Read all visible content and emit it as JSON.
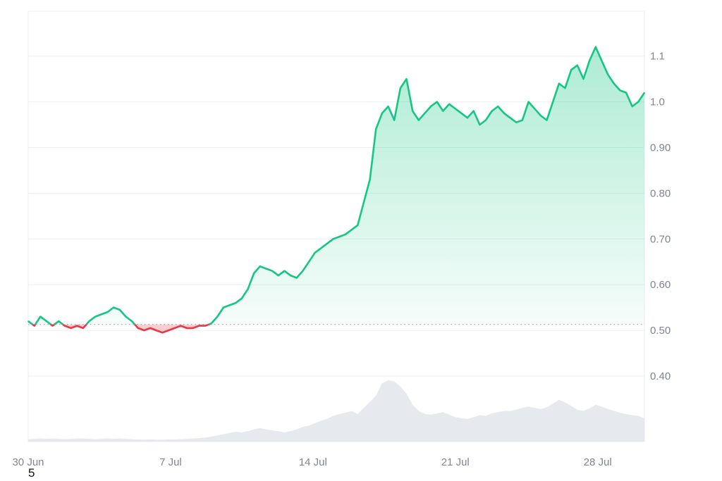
{
  "chart_data": {
    "type": "area",
    "title": "",
    "xlabel": "",
    "ylabel": "",
    "x_ticks": [
      "30 Jun",
      "7 Jul",
      "14 Jul",
      "21 Jul",
      "28 Jul"
    ],
    "x_tick_days": [
      0,
      7,
      14,
      21,
      28
    ],
    "x_range": [
      0,
      30.3
    ],
    "y_ticks": [
      "0.40",
      "0.50",
      "0.60",
      "0.70",
      "0.80",
      "0.90",
      "1.0",
      "1.1"
    ],
    "y_tick_values": [
      0.4,
      0.5,
      0.6,
      0.7,
      0.8,
      0.9,
      1.0,
      1.1
    ],
    "ylim": [
      0.3,
      1.2
    ],
    "baseline": 0.513,
    "grid": true,
    "y_axis_position": "right",
    "colors": {
      "up": "#16c784",
      "down": "#ea3943",
      "volume": "#e6e9ee",
      "grid": "#eceef1"
    },
    "series": [
      {
        "x": [
          0,
          0.3,
          0.6,
          0.9,
          1.2,
          1.5,
          1.8,
          2.1,
          2.4,
          2.7,
          3.0,
          3.3,
          3.6,
          3.9,
          4.2,
          4.5,
          4.8,
          5.1,
          5.4,
          5.7,
          6.0,
          6.3,
          6.6,
          6.9,
          7.2,
          7.5,
          7.8,
          8.1,
          8.4,
          8.7,
          9.0,
          9.3,
          9.6,
          9.9,
          10.2,
          10.5,
          10.8,
          11.1,
          11.4,
          11.7,
          12.0,
          12.3,
          12.6,
          12.9,
          13.2,
          13.5,
          13.8,
          14.1,
          14.4,
          14.7,
          15.0,
          15.3,
          15.6,
          15.9,
          16.2,
          16.5,
          16.8,
          17.1,
          17.4,
          17.7,
          18.0,
          18.3,
          18.6,
          18.9,
          19.2,
          19.5,
          19.8,
          20.1,
          20.4,
          20.7,
          21.0,
          21.3,
          21.6,
          21.9,
          22.2,
          22.5,
          22.8,
          23.1,
          23.4,
          23.7,
          24.0,
          24.3,
          24.6,
          24.9,
          25.2,
          25.5,
          25.8,
          26.1,
          26.4,
          26.7,
          27.0,
          27.3,
          27.6,
          27.9,
          28.2,
          28.5,
          28.8,
          29.1,
          29.4,
          29.7,
          30.0,
          30.3
        ],
        "values": [
          0.52,
          0.51,
          0.53,
          0.52,
          0.51,
          0.52,
          0.51,
          0.505,
          0.51,
          0.505,
          0.52,
          0.53,
          0.535,
          0.54,
          0.55,
          0.545,
          0.53,
          0.52,
          0.505,
          0.5,
          0.505,
          0.5,
          0.495,
          0.5,
          0.505,
          0.51,
          0.505,
          0.505,
          0.51,
          0.51,
          0.515,
          0.53,
          0.55,
          0.555,
          0.56,
          0.57,
          0.59,
          0.625,
          0.64,
          0.635,
          0.63,
          0.62,
          0.63,
          0.62,
          0.615,
          0.63,
          0.65,
          0.67,
          0.68,
          0.69,
          0.7,
          0.705,
          0.71,
          0.72,
          0.73,
          0.78,
          0.83,
          0.94,
          0.975,
          0.99,
          0.96,
          1.03,
          1.05,
          0.98,
          0.96,
          0.975,
          0.99,
          1.0,
          0.98,
          0.995,
          0.985,
          0.975,
          0.965,
          0.98,
          0.95,
          0.96,
          0.98,
          0.99,
          0.975,
          0.965,
          0.955,
          0.96,
          1.0,
          0.985,
          0.97,
          0.96,
          1.0,
          1.04,
          1.03,
          1.07,
          1.08,
          1.05,
          1.09,
          1.12,
          1.09,
          1.06,
          1.04,
          1.025,
          1.02,
          0.99,
          1.0,
          1.02
        ]
      }
    ],
    "volume": [
      0.04,
      0.045,
      0.05,
      0.045,
      0.05,
      0.045,
      0.04,
      0.045,
      0.05,
      0.05,
      0.045,
      0.04,
      0.045,
      0.05,
      0.045,
      0.05,
      0.045,
      0.04,
      0.035,
      0.03,
      0.035,
      0.03,
      0.03,
      0.035,
      0.035,
      0.04,
      0.045,
      0.05,
      0.055,
      0.065,
      0.08,
      0.1,
      0.12,
      0.14,
      0.16,
      0.15,
      0.17,
      0.2,
      0.22,
      0.2,
      0.18,
      0.17,
      0.15,
      0.17,
      0.2,
      0.24,
      0.26,
      0.3,
      0.34,
      0.37,
      0.42,
      0.45,
      0.47,
      0.5,
      0.45,
      0.55,
      0.65,
      0.75,
      0.95,
      1.0,
      0.98,
      0.9,
      0.78,
      0.6,
      0.5,
      0.45,
      0.44,
      0.46,
      0.48,
      0.44,
      0.4,
      0.38,
      0.37,
      0.4,
      0.43,
      0.42,
      0.46,
      0.48,
      0.5,
      0.5,
      0.52,
      0.55,
      0.57,
      0.55,
      0.53,
      0.56,
      0.62,
      0.68,
      0.64,
      0.58,
      0.52,
      0.5,
      0.54,
      0.6,
      0.57,
      0.53,
      0.5,
      0.47,
      0.45,
      0.43,
      0.42,
      0.38
    ]
  },
  "footer_note": "5"
}
